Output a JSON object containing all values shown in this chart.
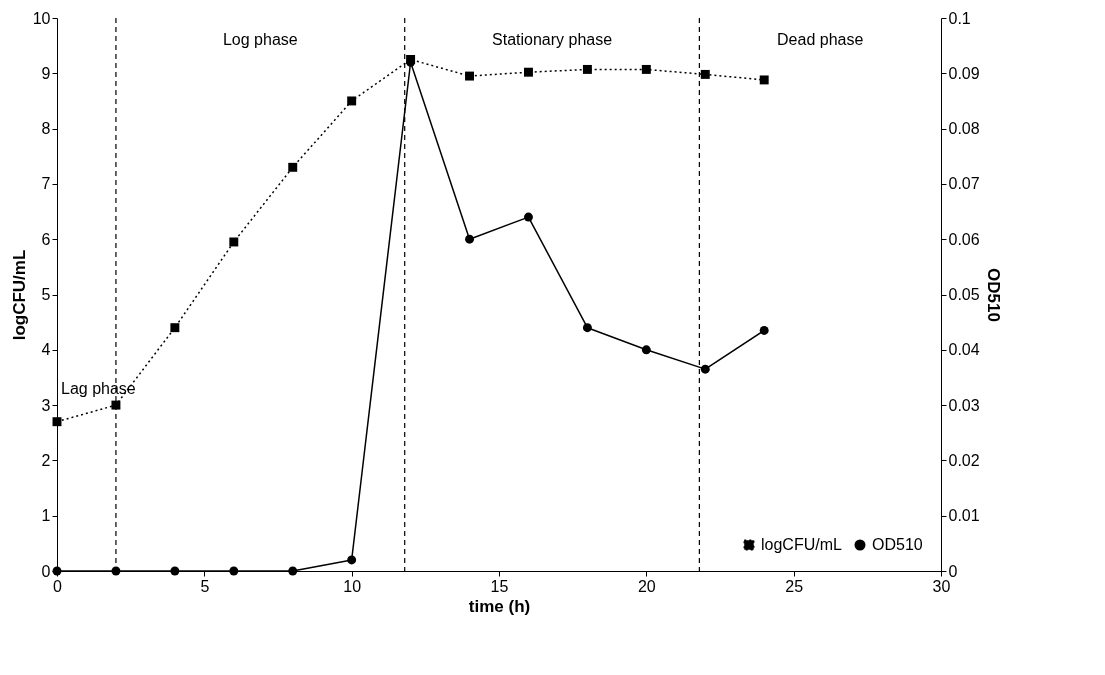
{
  "chart_data": {
    "type": "line",
    "xlabel": "time (h)",
    "ylabel": "logCFU/mL",
    "y2label": "OD510",
    "x": [
      0,
      2,
      4,
      6,
      8,
      10,
      12,
      14,
      16,
      18,
      20,
      22,
      24
    ],
    "series": [
      {
        "name": "logCFU/mL",
        "color": "#000000",
        "marker": "square",
        "line_style": "dotted",
        "values": [
          2.7,
          3.0,
          4.4,
          5.95,
          7.3,
          8.5,
          9.25,
          8.95,
          9.02,
          9.07,
          9.07,
          8.98,
          8.88
        ]
      },
      {
        "name": "OD510",
        "color": "#000000",
        "marker": "circle",
        "line_style": "solid",
        "axis": "y2",
        "values": [
          0,
          0,
          0,
          0,
          0,
          0.002,
          0.092,
          0.06,
          0.064,
          0.044,
          0.04,
          0.0365,
          0.0435
        ]
      }
    ],
    "xlim": [
      0,
      30
    ],
    "xticks": [
      0,
      5,
      10,
      15,
      20,
      25,
      30
    ],
    "ylim": [
      0,
      10
    ],
    "yticks": [
      0,
      1,
      2,
      3,
      4,
      5,
      6,
      7,
      8,
      9,
      10
    ],
    "y2lim": [
      0,
      0.1
    ],
    "y2ticks": [
      {
        "value": 0,
        "label": "0"
      },
      0.01,
      0.02,
      0.03,
      0.04,
      0.05,
      0.06,
      0.07,
      0.08,
      0.09,
      {
        "value": 0.1,
        "label": "0.1"
      }
    ],
    "ref_lines": [
      {
        "axis": "x",
        "value": 2,
        "line_style": "dashed"
      },
      {
        "axis": "x",
        "value": 11.8,
        "line_style": "dashed"
      },
      {
        "axis": "x",
        "value": 21.8,
        "line_style": "dashed"
      }
    ],
    "annotations": [
      "Lag phase",
      "Log phase",
      "Stationary phase",
      "Dead phase"
    ],
    "grid": false,
    "legend": "bottom right"
  }
}
